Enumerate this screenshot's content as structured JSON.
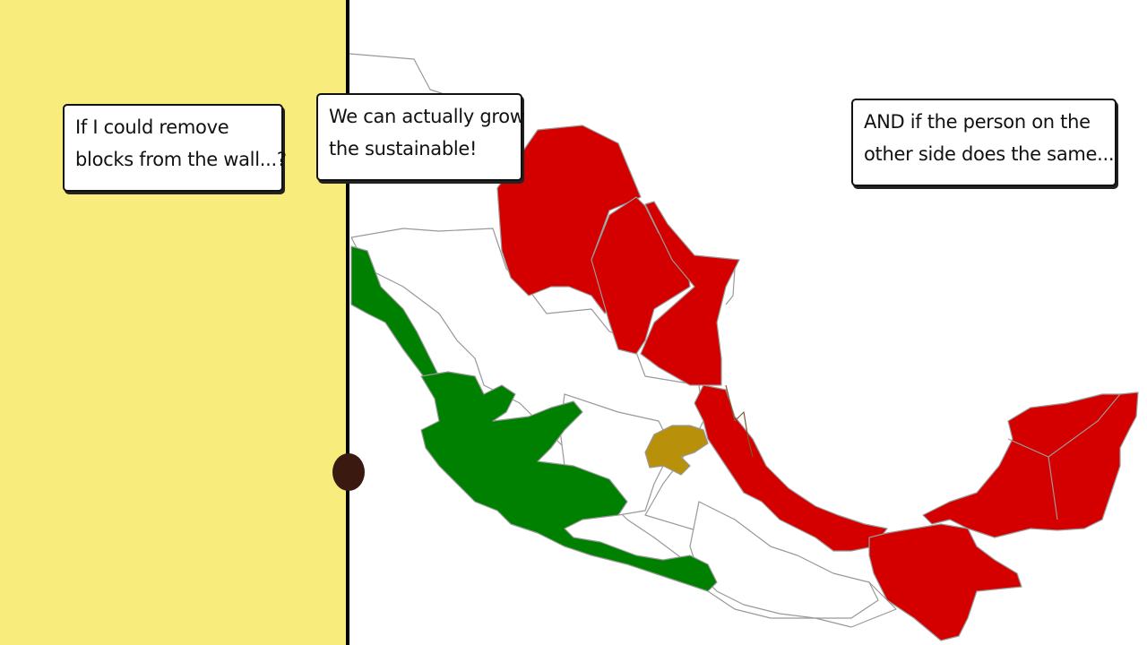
{
  "bubbles": {
    "left": {
      "line1": "If I could remove",
      "line2": "blocks from the wall...?"
    },
    "middle": {
      "line1": "We can actually grow",
      "line2": "the sustainable!"
    },
    "right": {
      "line1": "AND if the person on the",
      "line2": "other side does the same..."
    }
  },
  "colors": {
    "panel": "#f7ec7c",
    "red": "#d40000",
    "green": "#008000",
    "gold": "#b8900a",
    "outline": "#999999"
  }
}
